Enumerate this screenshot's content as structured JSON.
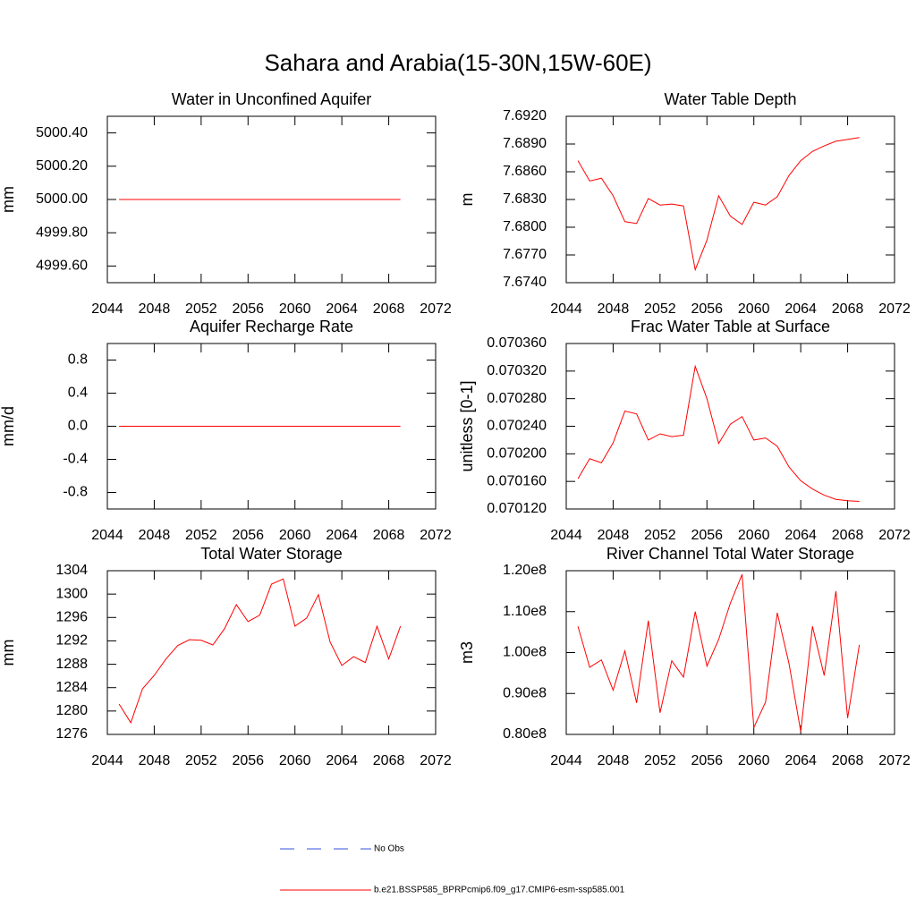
{
  "title": "Sahara and Arabia(15-30N,15W-60E)",
  "legend": [
    {
      "name": "No Obs",
      "color": "#3355dd",
      "dashed": true
    },
    {
      "name": "b.e21.BSSP585_BPRPcmip6.f09_g17.CMIP6-esm-ssp585.001",
      "color": "#ff0000",
      "dashed": false
    }
  ],
  "chart_data": [
    {
      "type": "line",
      "title": "Water in Unconfined Aquifer",
      "ylabel": "mm",
      "x": [
        2045,
        2046,
        2047,
        2048,
        2049,
        2050,
        2051,
        2052,
        2053,
        2054,
        2055,
        2056,
        2057,
        2058,
        2059,
        2060,
        2061,
        2062,
        2063,
        2064,
        2065,
        2066,
        2067,
        2068,
        2069
      ],
      "series": [
        {
          "color": "#ff0000",
          "values": [
            5000,
            5000,
            5000,
            5000,
            5000,
            5000,
            5000,
            5000,
            5000,
            5000,
            5000,
            5000,
            5000,
            5000,
            5000,
            5000,
            5000,
            5000,
            5000,
            5000,
            5000,
            5000,
            5000,
            5000,
            5000
          ]
        }
      ],
      "xlim": [
        2044,
        2072
      ],
      "xticks": [
        2044,
        2048,
        2052,
        2056,
        2060,
        2064,
        2068,
        2072
      ],
      "ylim": [
        4999.5,
        5000.5
      ],
      "yticks": [
        {
          "value": 4999.6,
          "label": "4999.60"
        },
        {
          "value": 4999.8,
          "label": "4999.80"
        },
        {
          "value": 5000,
          "label": "5000.00"
        },
        {
          "value": 5000.2,
          "label": "5000.20"
        },
        {
          "value": 5000.4,
          "label": "5000.40"
        }
      ]
    },
    {
      "type": "line",
      "title": "Water Table Depth",
      "ylabel": "m",
      "x": [
        2045,
        2046,
        2047,
        2048,
        2049,
        2050,
        2051,
        2052,
        2053,
        2054,
        2055,
        2056,
        2057,
        2058,
        2059,
        2060,
        2061,
        2062,
        2063,
        2064,
        2065,
        2066,
        2067,
        2068,
        2069
      ],
      "series": [
        {
          "color": "#ff0000",
          "values": [
            7.6872,
            7.685,
            7.6853,
            7.6834,
            7.6806,
            7.6804,
            7.6831,
            7.6824,
            7.6825,
            7.6823,
            7.6754,
            7.6786,
            7.6834,
            7.6812,
            7.6803,
            7.6827,
            7.6824,
            7.6833,
            7.6856,
            7.6872,
            7.6882,
            7.6888,
            7.6893,
            7.6895,
            7.6897
          ]
        }
      ],
      "xlim": [
        2044,
        2072
      ],
      "xticks": [
        2044,
        2048,
        2052,
        2056,
        2060,
        2064,
        2068,
        2072
      ],
      "ylim": [
        7.674,
        7.692
      ],
      "yticks": [
        {
          "value": 7.674,
          "label": "7.6740"
        },
        {
          "value": 7.677,
          "label": "7.6770"
        },
        {
          "value": 7.68,
          "label": "7.6800"
        },
        {
          "value": 7.683,
          "label": "7.6830"
        },
        {
          "value": 7.686,
          "label": "7.6860"
        },
        {
          "value": 7.689,
          "label": "7.6890"
        },
        {
          "value": 7.692,
          "label": "7.6920"
        }
      ]
    },
    {
      "type": "line",
      "title": "Aquifer Recharge Rate",
      "ylabel": "mm/d",
      "x": [
        2045,
        2046,
        2047,
        2048,
        2049,
        2050,
        2051,
        2052,
        2053,
        2054,
        2055,
        2056,
        2057,
        2058,
        2059,
        2060,
        2061,
        2062,
        2063,
        2064,
        2065,
        2066,
        2067,
        2068,
        2069
      ],
      "series": [
        {
          "color": "#ff0000",
          "values": [
            0,
            0,
            0,
            0,
            0,
            0,
            0,
            0,
            0,
            0,
            0,
            0,
            0,
            0,
            0,
            0,
            0,
            0,
            0,
            0,
            0,
            0,
            0,
            0,
            0
          ]
        }
      ],
      "xlim": [
        2044,
        2072
      ],
      "xticks": [
        2044,
        2048,
        2052,
        2056,
        2060,
        2064,
        2068,
        2072
      ],
      "ylim": [
        -1,
        1
      ],
      "yticks": [
        -0.8,
        -0.4,
        {
          "value": 0,
          "label": "0.0"
        },
        0.4,
        0.8
      ]
    },
    {
      "type": "line",
      "title": "Frac Water Table at Surface",
      "ylabel": "unitless [0-1]",
      "x": [
        2045,
        2046,
        2047,
        2048,
        2049,
        2050,
        2051,
        2052,
        2053,
        2054,
        2055,
        2056,
        2057,
        2058,
        2059,
        2060,
        2061,
        2062,
        2063,
        2064,
        2065,
        2066,
        2067,
        2068,
        2069
      ],
      "series": [
        {
          "color": "#ff0000",
          "values": [
            0.070164,
            0.070193,
            0.070187,
            0.070216,
            0.070262,
            0.070258,
            0.07022,
            0.070229,
            0.070225,
            0.070227,
            0.070327,
            0.07028,
            0.070215,
            0.070243,
            0.070254,
            0.07022,
            0.070223,
            0.070211,
            0.070181,
            0.070161,
            0.070149,
            0.07014,
            0.070134,
            0.070132,
            0.070131
          ]
        }
      ],
      "xlim": [
        2044,
        2072
      ],
      "xticks": [
        2044,
        2048,
        2052,
        2056,
        2060,
        2064,
        2068,
        2072
      ],
      "ylim": [
        0.07012,
        0.07036
      ],
      "yticks": [
        {
          "value": 0.07012,
          "label": "0.070120"
        },
        {
          "value": 0.07016,
          "label": "0.070160"
        },
        {
          "value": 0.0702,
          "label": "0.070200"
        },
        {
          "value": 0.07024,
          "label": "0.070240"
        },
        {
          "value": 0.07028,
          "label": "0.070280"
        },
        {
          "value": 0.07032,
          "label": "0.070320"
        },
        {
          "value": 0.07036,
          "label": "0.070360"
        }
      ]
    },
    {
      "type": "line",
      "title": "Total Water Storage",
      "ylabel": "mm",
      "x": [
        2045,
        2046,
        2047,
        2048,
        2049,
        2050,
        2051,
        2052,
        2053,
        2054,
        2055,
        2056,
        2057,
        2058,
        2059,
        2060,
        2061,
        2062,
        2063,
        2064,
        2065,
        2066,
        2067,
        2068,
        2069
      ],
      "series": [
        {
          "color": "#ff0000",
          "values": [
            1281.2,
            1278.0,
            1283.8,
            1286.1,
            1288.9,
            1291.2,
            1292.2,
            1292.1,
            1291.3,
            1294.1,
            1298.2,
            1295.3,
            1296.4,
            1301.7,
            1302.6,
            1294.5,
            1295.9,
            1299.9,
            1291.8,
            1287.8,
            1289.3,
            1288.3,
            1294.5,
            1288.9,
            1294.5
          ]
        }
      ],
      "xlim": [
        2044,
        2072
      ],
      "xticks": [
        2044,
        2048,
        2052,
        2056,
        2060,
        2064,
        2068,
        2072
      ],
      "ylim": [
        1276,
        1304
      ],
      "yticks": [
        1276,
        1280,
        1284,
        1288,
        1292,
        1296,
        1300,
        1304
      ]
    },
    {
      "type": "line",
      "title": "River Channel Total Water Storage",
      "ylabel": "m3",
      "x": [
        2045,
        2046,
        2047,
        2048,
        2049,
        2050,
        2051,
        2052,
        2053,
        2054,
        2055,
        2056,
        2057,
        2058,
        2059,
        2060,
        2061,
        2062,
        2063,
        2064,
        2065,
        2066,
        2067,
        2068,
        2069
      ],
      "series": [
        {
          "color": "#ff0000",
          "values": [
            106400000,
            96400000,
            98200000,
            90800000,
            100400000,
            87700000,
            107800000,
            85300000,
            98000000,
            94000000,
            110000000,
            96700000,
            103200000,
            112100000,
            119100000,
            81700000,
            87900000,
            109700000,
            97300000,
            80700000,
            106400000,
            94400000,
            115000000,
            84000000,
            101900000
          ]
        }
      ],
      "xlim": [
        2044,
        2072
      ],
      "xticks": [
        2044,
        2048,
        2052,
        2056,
        2060,
        2064,
        2068,
        2072
      ],
      "ylim": [
        80000000,
        120000000
      ],
      "yticks": [
        {
          "value": 80000000,
          "label": "0.80e8"
        },
        {
          "value": 90000000,
          "label": "0.90e8"
        },
        {
          "value": 100000000,
          "label": "1.00e8"
        },
        {
          "value": 110000000,
          "label": "1.10e8"
        },
        {
          "value": 120000000,
          "label": "1.20e8"
        }
      ]
    }
  ]
}
